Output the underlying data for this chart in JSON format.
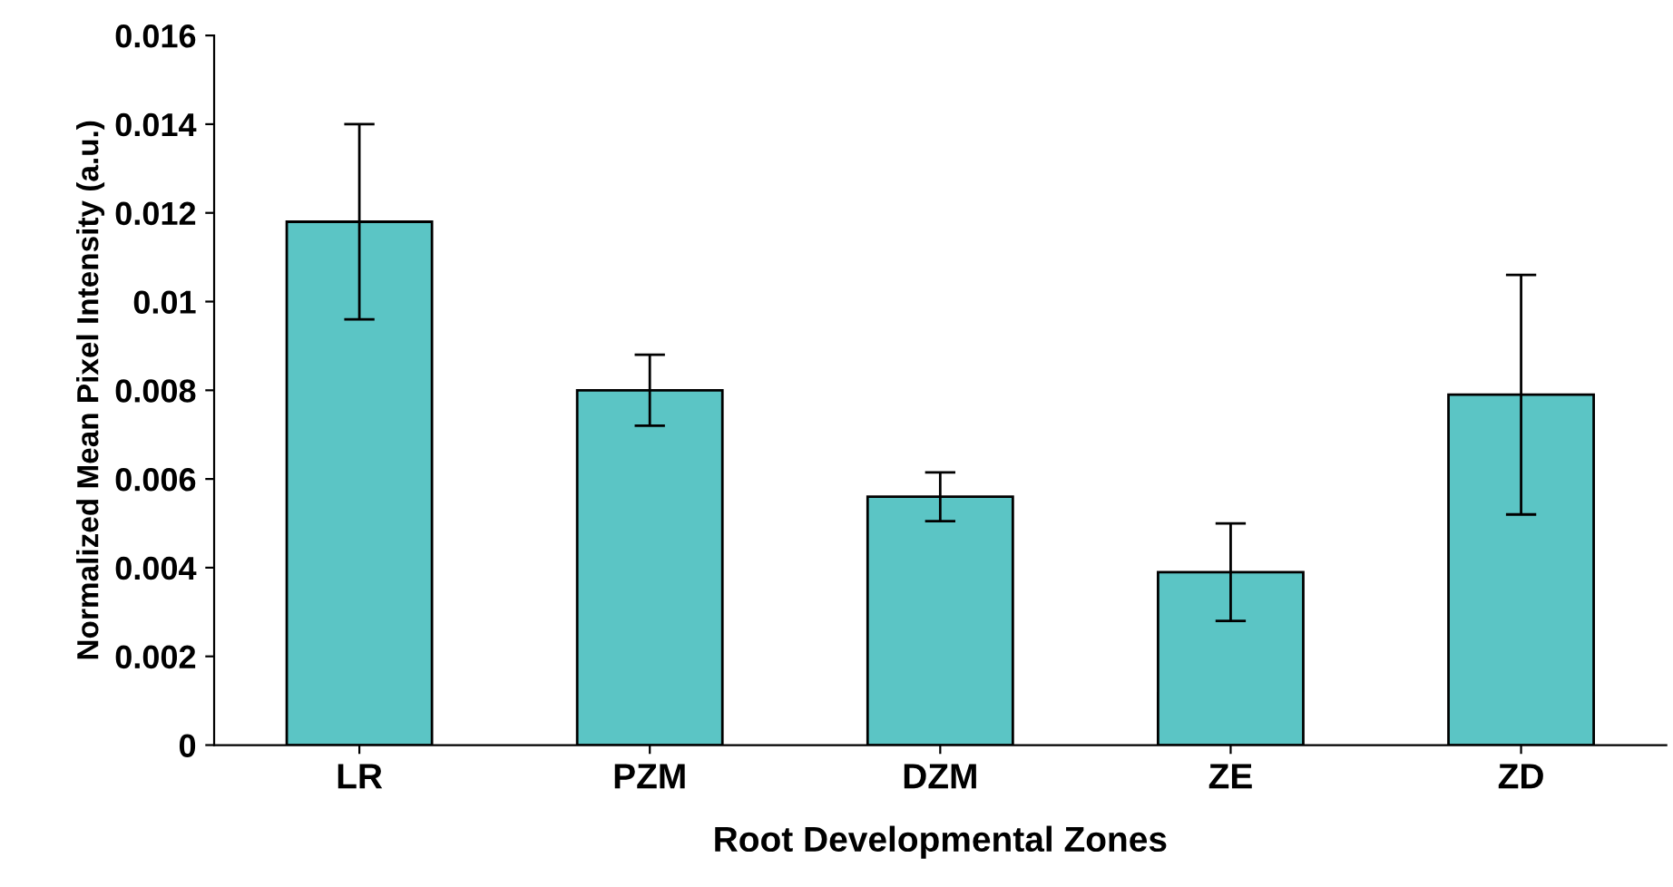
{
  "chart_data": {
    "type": "bar",
    "xlabel": "Root Developmental Zones",
    "ylabel": "Normalized Mean Pixel Intensity (a.u.)",
    "categories": [
      "LR",
      "PZM",
      "DZM",
      "ZE",
      "ZD"
    ],
    "values": [
      0.0118,
      0.008,
      0.0056,
      0.0039,
      0.0079
    ],
    "errors": [
      0.0022,
      0.0008,
      0.00055,
      0.0011,
      0.0027
    ],
    "color": "#5bc5c5",
    "ylim": [
      0,
      0.016
    ],
    "yticks": [
      0,
      0.002,
      0.004,
      0.006,
      0.008,
      0.01,
      0.012,
      0.014,
      0.016
    ],
    "grid": false,
    "legend": false
  }
}
